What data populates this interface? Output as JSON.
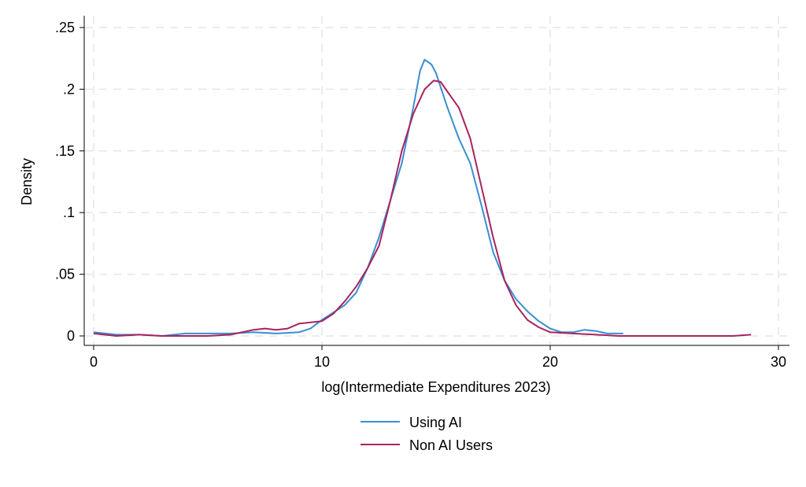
{
  "chart_data": {
    "type": "line",
    "title": "",
    "xlabel": "log(Intermediate Expenditures 2023)",
    "ylabel": "Density",
    "xlim": [
      0,
      30
    ],
    "ylim": [
      0,
      0.25
    ],
    "xticks": [
      0,
      10,
      20,
      30
    ],
    "xtick_labels": [
      "0",
      "10",
      "20",
      "30"
    ],
    "yticks": [
      0,
      0.05,
      0.1,
      0.15,
      0.2,
      0.25
    ],
    "ytick_labels": [
      "0",
      ".05",
      ".1",
      ".15",
      ".2",
      ".25"
    ],
    "grid": true,
    "legend_position": "bottom",
    "series": [
      {
        "name": "Using AI",
        "color": "#3a8fd0",
        "x": [
          0,
          1,
          2,
          3,
          4,
          5,
          6,
          7,
          8,
          9,
          9.5,
          10,
          11,
          11.5,
          12,
          12.5,
          13,
          13.5,
          14,
          14.3,
          14.5,
          14.8,
          15,
          15.5,
          16,
          16.5,
          17,
          17.5,
          18,
          18.5,
          19,
          19.5,
          20,
          20.5,
          21,
          21.5,
          22,
          22.5,
          23.2
        ],
        "y": [
          0.003,
          0.001,
          0.001,
          0.0,
          0.002,
          0.002,
          0.002,
          0.003,
          0.002,
          0.003,
          0.006,
          0.013,
          0.025,
          0.035,
          0.055,
          0.08,
          0.11,
          0.14,
          0.185,
          0.215,
          0.224,
          0.22,
          0.213,
          0.185,
          0.16,
          0.14,
          0.105,
          0.068,
          0.045,
          0.03,
          0.02,
          0.012,
          0.006,
          0.003,
          0.003,
          0.005,
          0.004,
          0.002,
          0.002
        ]
      },
      {
        "name": "Non AI Users",
        "color": "#a8245f",
        "x": [
          0,
          1,
          2,
          3,
          4,
          5,
          6,
          7,
          7.5,
          8,
          8.5,
          9,
          9.5,
          10,
          10.5,
          11,
          11.5,
          12,
          12.5,
          13,
          13.5,
          14,
          14.5,
          14.9,
          15.2,
          15.5,
          16,
          16.5,
          17,
          17.5,
          18,
          18.5,
          19,
          19.5,
          20,
          21,
          22,
          23,
          28,
          28.8
        ],
        "y": [
          0.002,
          0.0,
          0.001,
          0.0,
          0.0,
          0.0,
          0.001,
          0.005,
          0.006,
          0.005,
          0.006,
          0.01,
          0.011,
          0.012,
          0.018,
          0.028,
          0.04,
          0.055,
          0.073,
          0.11,
          0.15,
          0.18,
          0.2,
          0.207,
          0.206,
          0.198,
          0.185,
          0.16,
          0.12,
          0.08,
          0.045,
          0.025,
          0.013,
          0.007,
          0.003,
          0.002,
          0.001,
          0.0,
          0.0,
          0.001
        ]
      }
    ]
  }
}
